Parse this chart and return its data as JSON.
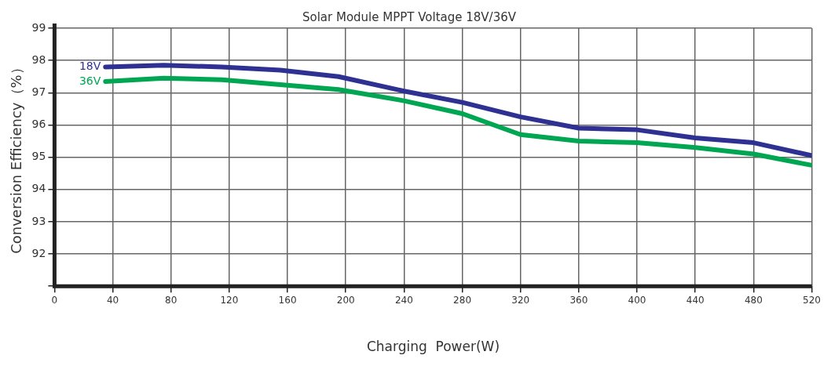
{
  "chart_data": {
    "type": "line",
    "title": "Solar Module MPPT Voltage 18V/36V",
    "xlabel": "Charging  Power(W)",
    "ylabel": "Conversion Efficiency（%）",
    "x": [
      35,
      75,
      115,
      155,
      195,
      240,
      280,
      320,
      360,
      400,
      440,
      480,
      520
    ],
    "series": [
      {
        "name": "18V",
        "color": "#2e3192",
        "values": [
          97.8,
          97.85,
          97.8,
          97.7,
          97.5,
          97.05,
          96.7,
          96.25,
          95.9,
          95.85,
          95.6,
          95.45,
          95.05
        ]
      },
      {
        "name": "36V",
        "color": "#00a651",
        "values": [
          97.35,
          97.45,
          97.4,
          97.25,
          97.1,
          96.75,
          96.35,
          95.7,
          95.5,
          95.45,
          95.3,
          95.1,
          94.75
        ]
      }
    ],
    "xlim": [
      0,
      520
    ],
    "xticks": [
      0,
      40,
      80,
      120,
      160,
      200,
      240,
      280,
      320,
      360,
      400,
      440,
      480,
      520
    ],
    "ylim": [
      91,
      99
    ],
    "yticks": [
      {
        "value": 91,
        "label": null
      },
      92,
      93,
      94,
      95,
      96,
      97,
      98,
      99
    ],
    "grid": true,
    "legend": false,
    "marker": "none",
    "line_style": "solid"
  }
}
